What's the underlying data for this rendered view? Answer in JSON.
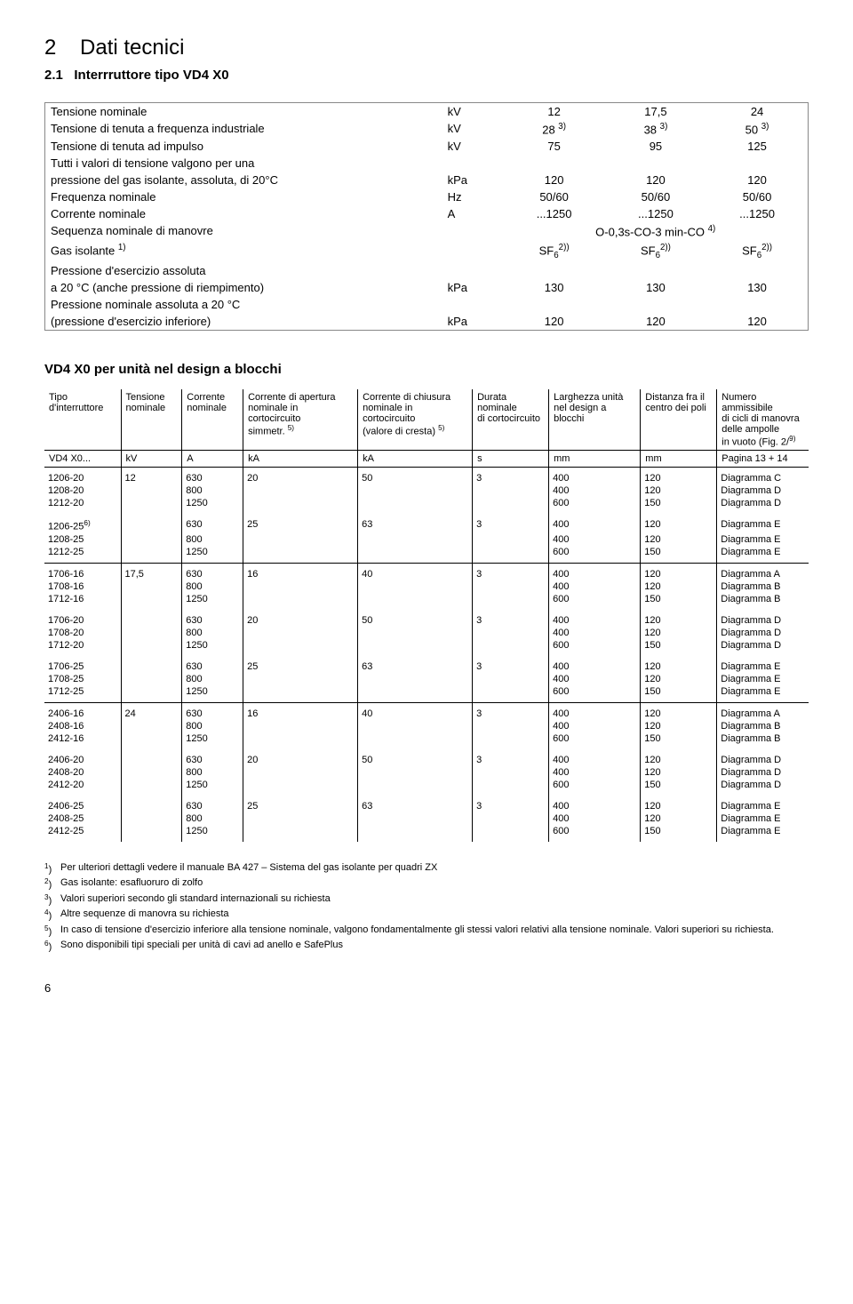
{
  "section": {
    "number": "2",
    "title": "Dati tecnici"
  },
  "subsection": {
    "number": "2.1",
    "title": "Interrruttore tipo VD4 X0"
  },
  "spec_table": {
    "rows": [
      {
        "label": "Tensione nominale",
        "unit": "kV",
        "v1": "12",
        "v2": "17,5",
        "v3": "24"
      },
      {
        "label": "Tensione di tenuta a frequenza industriale",
        "unit": "kV",
        "v1": "28 ",
        "v1sup": "3)",
        "v2": "38 ",
        "v2sup": "3)",
        "v3": "50 ",
        "v3sup": "3)"
      },
      {
        "label": "Tensione di tenuta ad impulso",
        "unit": "kV",
        "v1": "75",
        "v2": "95",
        "v3": "125"
      },
      {
        "label": "Tutti i valori di tensione valgono per una",
        "unit": "",
        "v1": "",
        "v2": "",
        "v3": ""
      },
      {
        "label": "pressione del gas isolante, assoluta, di 20°C",
        "unit": "kPa",
        "v1": "120",
        "v2": "120",
        "v3": "120"
      },
      {
        "label": "Frequenza nominale",
        "unit": "Hz",
        "v1": "50/60",
        "v2": "50/60",
        "v3": "50/60"
      },
      {
        "label": "Corrente nominale",
        "unit": "A",
        "v1": "...1250",
        "v2": "...1250",
        "v3": "...1250"
      }
    ],
    "seq_row": {
      "label": "Sequenza nominale di manovre",
      "center": "O-0,3s-CO-3 min-CO ",
      "centersup": "4)"
    },
    "gas_row": {
      "label": "Gas isolante ",
      "labelsup": "1)",
      "v": "SF",
      "vsub": "6",
      "vsup": "2)"
    },
    "press_rows": [
      {
        "label": "Pressione d'esercizio assoluta",
        "unit": "",
        "v1": "",
        "v2": "",
        "v3": ""
      },
      {
        "label": "a 20 °C (anche pressione di riempimento)",
        "unit": "kPa",
        "v1": "130",
        "v2": "130",
        "v3": "130"
      },
      {
        "label": "Pressione nominale assoluta a 20 °C",
        "unit": "",
        "v1": "",
        "v2": "",
        "v3": ""
      },
      {
        "label": "(pressione d'esercizio inferiore)",
        "unit": "kPa",
        "v1": "120",
        "v2": "120",
        "v3": "120"
      }
    ]
  },
  "block_heading": "VD4 X0 per unità nel design a blocchi",
  "data_table": {
    "headers": [
      "Tipo\nd'interruttore",
      "Tensione\nnominale",
      "Corrente\nnominale",
      "Corrente di apertura\nnominale in cortocircuito\nsimmetr. 5)",
      "Corrente di chiusura\nnominale in cortocircuito\n(valore di cresta) 5)",
      "Durata nominale\ndi cortocircuito",
      "Larghezza unità\nnel design a blocchi",
      "Distanza fra il\ncentro dei poli",
      "Numero ammissibile\ndi cicli di manovra\ndelle ampolle\nin vuoto (Fig. 2/9)"
    ],
    "units_row": [
      "VD4 X0...",
      "kV",
      "A",
      "kA",
      "kA",
      "s",
      "mm",
      "mm",
      "Pagina 13 + 14"
    ],
    "sections": [
      {
        "groups": [
          {
            "rows": [
              [
                "1206-20",
                "12",
                "630",
                "20",
                "50",
                "3",
                "400",
                "120",
                "Diagramma C"
              ],
              [
                "1208-20",
                "",
                "800",
                "",
                "",
                "",
                "400",
                "120",
                "Diagramma D"
              ],
              [
                "1212-20",
                "",
                "1250",
                "",
                "",
                "",
                "600",
                "150",
                "Diagramma D"
              ]
            ]
          },
          {
            "rows": [
              [
                "1206-256)",
                "",
                "630",
                "25",
                "63",
                "3",
                "400",
                "120",
                "Diagramma E"
              ],
              [
                "1208-25",
                "",
                "800",
                "",
                "",
                "",
                "400",
                "120",
                "Diagramma E"
              ],
              [
                "1212-25",
                "",
                "1250",
                "",
                "",
                "",
                "600",
                "150",
                "Diagramma E"
              ]
            ]
          }
        ]
      },
      {
        "groups": [
          {
            "rows": [
              [
                "1706-16",
                "17,5",
                "630",
                "16",
                "40",
                "3",
                "400",
                "120",
                "Diagramma A"
              ],
              [
                "1708-16",
                "",
                "800",
                "",
                "",
                "",
                "400",
                "120",
                "Diagramma B"
              ],
              [
                "1712-16",
                "",
                "1250",
                "",
                "",
                "",
                "600",
                "150",
                "Diagramma B"
              ]
            ]
          },
          {
            "rows": [
              [
                "1706-20",
                "",
                "630",
                "20",
                "50",
                "3",
                "400",
                "120",
                "Diagramma D"
              ],
              [
                "1708-20",
                "",
                "800",
                "",
                "",
                "",
                "400",
                "120",
                "Diagramma D"
              ],
              [
                "1712-20",
                "",
                "1250",
                "",
                "",
                "",
                "600",
                "150",
                "Diagramma D"
              ]
            ]
          },
          {
            "rows": [
              [
                "1706-25",
                "",
                "630",
                "25",
                "63",
                "3",
                "400",
                "120",
                "Diagramma E"
              ],
              [
                "1708-25",
                "",
                "800",
                "",
                "",
                "",
                "400",
                "120",
                "Diagramma E"
              ],
              [
                "1712-25",
                "",
                "1250",
                "",
                "",
                "",
                "600",
                "150",
                "Diagramma E"
              ]
            ]
          }
        ]
      },
      {
        "groups": [
          {
            "rows": [
              [
                "2406-16",
                "24",
                "630",
                "16",
                "40",
                "3",
                "400",
                "120",
                "Diagramma A"
              ],
              [
                "2408-16",
                "",
                "800",
                "",
                "",
                "",
                "400",
                "120",
                "Diagramma B"
              ],
              [
                "2412-16",
                "",
                "1250",
                "",
                "",
                "",
                "600",
                "150",
                "Diagramma B"
              ]
            ]
          },
          {
            "rows": [
              [
                "2406-20",
                "",
                "630",
                "20",
                "50",
                "3",
                "400",
                "120",
                "Diagramma D"
              ],
              [
                "2408-20",
                "",
                "800",
                "",
                "",
                "",
                "400",
                "120",
                "Diagramma D"
              ],
              [
                "2412-20",
                "",
                "1250",
                "",
                "",
                "",
                "600",
                "150",
                "Diagramma D"
              ]
            ]
          },
          {
            "rows": [
              [
                "2406-25",
                "",
                "630",
                "25",
                "63",
                "3",
                "400",
                "120",
                "Diagramma E"
              ],
              [
                "2408-25",
                "",
                "800",
                "",
                "",
                "",
                "400",
                "120",
                "Diagramma E"
              ],
              [
                "2412-25",
                "",
                "1250",
                "",
                "",
                "",
                "600",
                "150",
                "Diagramma E"
              ]
            ]
          }
        ]
      }
    ]
  },
  "footnotes": [
    {
      "sup": "1)",
      "text": "Per ulteriori dettagli vedere il manuale BA 427 – Sistema del gas isolante per quadri ZX"
    },
    {
      "sup": "2)",
      "text": "Gas isolante: esafluoruro di zolfo"
    },
    {
      "sup": "3)",
      "text": "Valori superiori secondo gli standard internazionali su richiesta"
    },
    {
      "sup": "4)",
      "text": "Altre sequenze di manovra su richiesta"
    },
    {
      "sup": "5)",
      "text": "In caso di tensione d'esercizio inferiore alla tensione nominale, valgono fondamentalmente gli stessi valori relativi alla tensione nominale. Valori superiori su richiesta."
    },
    {
      "sup": "6)",
      "text": "Sono disponibili tipi speciali per unità di cavi ad anello e SafePlus"
    }
  ],
  "page_number": "6"
}
